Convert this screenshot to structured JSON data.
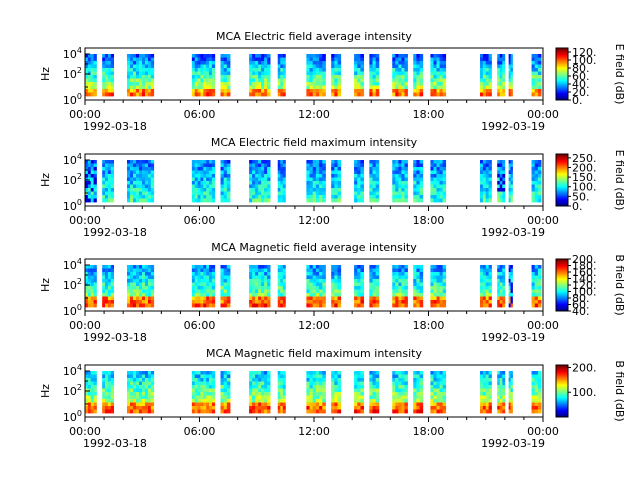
{
  "chart_data": [
    {
      "type": "heatmap",
      "title": "MCA  Electric field average intensity",
      "ylabel": "Hz",
      "yscale": "log",
      "ylim": [
        1,
        50000
      ],
      "yticks": [
        "10^0",
        "10^2",
        "10^4"
      ],
      "xlim": [
        "1992-03-18 00:00",
        "1992-03-19 00:00"
      ],
      "xticks": [
        "00:00",
        "06:00",
        "12:00",
        "18:00",
        "00:00"
      ],
      "xdate_start": "1992-03-18",
      "xdate_end": "1992-03-19",
      "colorbar": {
        "label": "E field (dB)",
        "ticks": [
          "0.",
          "20.",
          "40.",
          "60.",
          "80.",
          "100.",
          "120."
        ],
        "min": 0,
        "max": 130
      },
      "data_segments_hours": [
        [
          0.0,
          0.6
        ],
        [
          0.9,
          1.5
        ],
        [
          2.2,
          3.3
        ],
        [
          3.3,
          3.6
        ],
        [
          5.6,
          6.8
        ],
        [
          7.1,
          7.6
        ],
        [
          8.6,
          9.7
        ],
        [
          10.1,
          10.5
        ],
        [
          11.6,
          12.6
        ],
        [
          12.9,
          13.4
        ],
        [
          14.1,
          14.6
        ],
        [
          14.9,
          15.4
        ],
        [
          16.1,
          16.9
        ],
        [
          17.2,
          17.7
        ],
        [
          18.1,
          18.9
        ],
        [
          20.7,
          21.3
        ],
        [
          21.6,
          22.0
        ],
        [
          22.2,
          22.4
        ],
        [
          23.4,
          23.9
        ]
      ]
    },
    {
      "type": "heatmap",
      "title": "MCA  Electric field maximum intensity",
      "ylabel": "Hz",
      "yscale": "log",
      "ylim": [
        1,
        50000
      ],
      "yticks": [
        "10^0",
        "10^2",
        "10^4"
      ],
      "xlim": [
        "1992-03-18 00:00",
        "1992-03-19 00:00"
      ],
      "xticks": [
        "00:00",
        "06:00",
        "12:00",
        "18:00",
        "00:00"
      ],
      "xdate_start": "1992-03-18",
      "xdate_end": "1992-03-19",
      "colorbar": {
        "label": "E field (dB)",
        "ticks": [
          "0.",
          "50.",
          "100.",
          "150.",
          "200.",
          "250."
        ],
        "min": 0,
        "max": 270
      },
      "data_segments_hours": [
        [
          0.0,
          0.6
        ],
        [
          0.9,
          1.5
        ],
        [
          2.2,
          3.3
        ],
        [
          3.3,
          3.6
        ],
        [
          5.6,
          6.8
        ],
        [
          7.1,
          7.6
        ],
        [
          8.6,
          9.7
        ],
        [
          10.1,
          10.5
        ],
        [
          11.6,
          12.6
        ],
        [
          12.9,
          13.4
        ],
        [
          14.1,
          14.6
        ],
        [
          14.9,
          15.4
        ],
        [
          16.1,
          16.9
        ],
        [
          17.2,
          17.7
        ],
        [
          18.1,
          18.9
        ],
        [
          20.7,
          21.3
        ],
        [
          21.6,
          22.0
        ],
        [
          22.2,
          22.4
        ],
        [
          23.4,
          23.9
        ]
      ]
    },
    {
      "type": "heatmap",
      "title": "MCA  Magnetic field average intensity",
      "ylabel": "Hz",
      "yscale": "log",
      "ylim": [
        1,
        50000
      ],
      "yticks": [
        "10^0",
        "10^2",
        "10^4"
      ],
      "xlim": [
        "1992-03-18 00:00",
        "1992-03-19 00:00"
      ],
      "xticks": [
        "00:00",
        "06:00",
        "12:00",
        "18:00",
        "00:00"
      ],
      "xdate_start": "1992-03-18",
      "xdate_end": "1992-03-19",
      "colorbar": {
        "label": "B field (dB)",
        "ticks": [
          "40.",
          "60.",
          "80.",
          "100.",
          "120.",
          "140.",
          "160.",
          "180.",
          "200."
        ],
        "min": 40,
        "max": 200
      },
      "data_segments_hours": [
        [
          0.0,
          0.6
        ],
        [
          0.9,
          1.5
        ],
        [
          2.2,
          3.3
        ],
        [
          3.3,
          3.6
        ],
        [
          5.6,
          6.8
        ],
        [
          7.1,
          7.6
        ],
        [
          8.6,
          9.7
        ],
        [
          10.1,
          10.5
        ],
        [
          11.6,
          12.6
        ],
        [
          12.9,
          13.4
        ],
        [
          14.1,
          14.6
        ],
        [
          14.9,
          15.4
        ],
        [
          16.1,
          16.9
        ],
        [
          17.2,
          17.7
        ],
        [
          18.1,
          18.9
        ],
        [
          20.7,
          21.3
        ],
        [
          21.6,
          22.0
        ],
        [
          22.2,
          22.4
        ],
        [
          23.4,
          23.9
        ]
      ]
    },
    {
      "type": "heatmap",
      "title": "MCA  Magnetic field maximum intensity",
      "ylabel": "Hz",
      "yscale": "log",
      "ylim": [
        1,
        50000
      ],
      "yticks": [
        "10^0",
        "10^2",
        "10^4"
      ],
      "xlim": [
        "1992-03-18 00:00",
        "1992-03-19 00:00"
      ],
      "xticks": [
        "00:00",
        "06:00",
        "12:00",
        "18:00",
        "00:00"
      ],
      "xdate_start": "1992-03-18",
      "xdate_end": "1992-03-19",
      "colorbar": {
        "label": "B field (dB)",
        "ticks": [
          "100.",
          "200."
        ],
        "min": 0,
        "max": 210
      },
      "data_segments_hours": [
        [
          0.0,
          0.6
        ],
        [
          0.9,
          1.5
        ],
        [
          2.2,
          3.3
        ],
        [
          3.3,
          3.6
        ],
        [
          5.6,
          6.8
        ],
        [
          7.1,
          7.6
        ],
        [
          8.6,
          9.7
        ],
        [
          10.1,
          10.5
        ],
        [
          11.6,
          12.6
        ],
        [
          12.9,
          13.4
        ],
        [
          14.1,
          14.6
        ],
        [
          14.9,
          15.4
        ],
        [
          16.1,
          16.9
        ],
        [
          17.2,
          17.7
        ],
        [
          18.1,
          18.9
        ],
        [
          20.7,
          21.3
        ],
        [
          21.6,
          22.0
        ],
        [
          22.2,
          22.4
        ],
        [
          23.4,
          23.9
        ]
      ]
    }
  ]
}
